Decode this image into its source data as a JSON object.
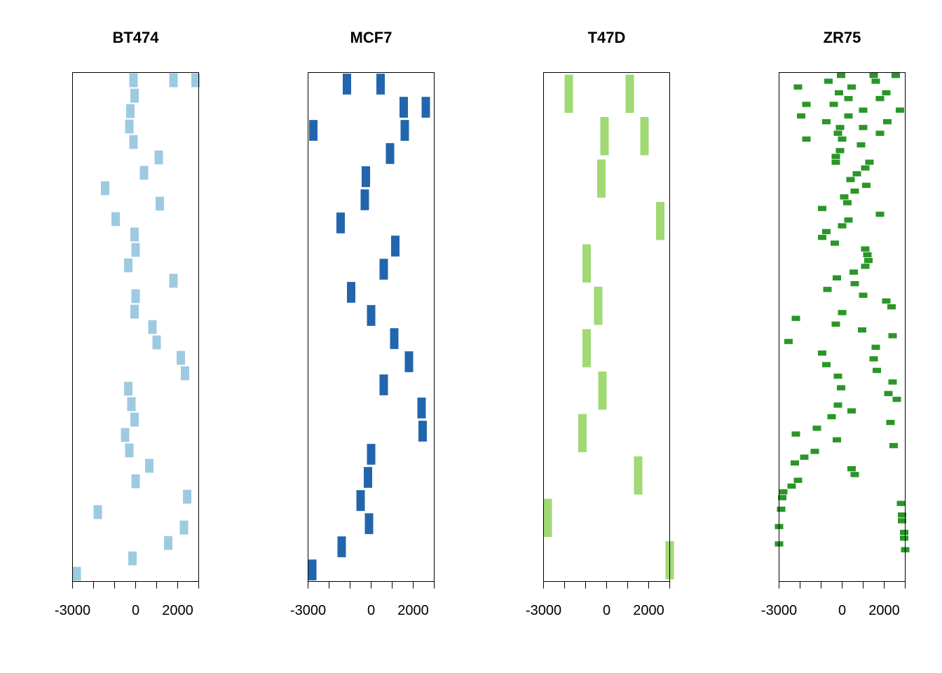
{
  "chart_data": [
    {
      "type": "segment",
      "title": "BT474",
      "color": "#9ECAE1",
      "xlim": [
        -3000,
        3000
      ],
      "x_ticks": [
        -3000,
        -2000,
        -1000,
        0,
        1000,
        2000,
        3000
      ],
      "x_tick_labels": [
        "-3000",
        "",
        "",
        "0",
        "",
        "2000",
        ""
      ],
      "rows": 33,
      "segments": [
        {
          "row": 0,
          "x": -100
        },
        {
          "row": 0,
          "x": 1800
        },
        {
          "row": 0,
          "x": 2850
        },
        {
          "row": 1,
          "x": -50
        },
        {
          "row": 2,
          "x": -250
        },
        {
          "row": 3,
          "x": -300
        },
        {
          "row": 4,
          "x": -100
        },
        {
          "row": 5,
          "x": 1100
        },
        {
          "row": 6,
          "x": 400
        },
        {
          "row": 7,
          "x": -1450
        },
        {
          "row": 8,
          "x": 1150
        },
        {
          "row": 9,
          "x": -950
        },
        {
          "row": 10,
          "x": -50
        },
        {
          "row": 11,
          "x": 0
        },
        {
          "row": 12,
          "x": -350
        },
        {
          "row": 13,
          "x": 1800
        },
        {
          "row": 14,
          "x": 0
        },
        {
          "row": 15,
          "x": -50
        },
        {
          "row": 16,
          "x": 800
        },
        {
          "row": 17,
          "x": 1000
        },
        {
          "row": 18,
          "x": 2150
        },
        {
          "row": 19,
          "x": 2350
        },
        {
          "row": 20,
          "x": -350
        },
        {
          "row": 21,
          "x": -200
        },
        {
          "row": 22,
          "x": -50
        },
        {
          "row": 23,
          "x": -500
        },
        {
          "row": 24,
          "x": -300
        },
        {
          "row": 25,
          "x": 650
        },
        {
          "row": 26,
          "x": 0
        },
        {
          "row": 27,
          "x": 2450
        },
        {
          "row": 28,
          "x": -1800
        },
        {
          "row": 29,
          "x": 2300
        },
        {
          "row": 30,
          "x": 1550
        },
        {
          "row": 31,
          "x": -150
        },
        {
          "row": 32,
          "x": -2800
        }
      ]
    },
    {
      "type": "segment",
      "title": "MCF7",
      "color": "#2166AC",
      "xlim": [
        -3000,
        3000
      ],
      "x_ticks": [
        -3000,
        -2000,
        -1000,
        0,
        1000,
        2000,
        3000
      ],
      "x_tick_labels": [
        "-3000",
        "",
        "",
        "0",
        "",
        "2000",
        ""
      ],
      "rows": 22,
      "segments": [
        {
          "row": 0,
          "x": -1150
        },
        {
          "row": 0,
          "x": 450
        },
        {
          "row": 1,
          "x": 1550
        },
        {
          "row": 1,
          "x": 2600
        },
        {
          "row": 2,
          "x": -2750
        },
        {
          "row": 2,
          "x": 1600
        },
        {
          "row": 3,
          "x": 900
        },
        {
          "row": 4,
          "x": -250
        },
        {
          "row": 5,
          "x": -300
        },
        {
          "row": 6,
          "x": -1450
        },
        {
          "row": 7,
          "x": 1150
        },
        {
          "row": 8,
          "x": 600
        },
        {
          "row": 9,
          "x": -950
        },
        {
          "row": 10,
          "x": 0
        },
        {
          "row": 11,
          "x": 1100
        },
        {
          "row": 12,
          "x": 1800
        },
        {
          "row": 13,
          "x": 600
        },
        {
          "row": 14,
          "x": 2400
        },
        {
          "row": 15,
          "x": 2450
        },
        {
          "row": 16,
          "x": 0
        },
        {
          "row": 17,
          "x": -150
        },
        {
          "row": 18,
          "x": -500
        },
        {
          "row": 19,
          "x": -100
        },
        {
          "row": 20,
          "x": -1400
        },
        {
          "row": 21,
          "x": -2800
        }
      ]
    },
    {
      "type": "segment",
      "title": "T47D",
      "color": "#A1D975",
      "xlim": [
        -3000,
        3000
      ],
      "x_ticks": [
        -3000,
        -2000,
        -1000,
        0,
        1000,
        2000,
        3000
      ],
      "x_tick_labels": [
        "-3000",
        "",
        "",
        "0",
        "",
        "2000",
        ""
      ],
      "rows": 12,
      "segments": [
        {
          "row": 0,
          "x": -1800
        },
        {
          "row": 0,
          "x": 1100
        },
        {
          "row": 1,
          "x": -100
        },
        {
          "row": 1,
          "x": 1800
        },
        {
          "row": 2,
          "x": -250
        },
        {
          "row": 3,
          "x": 2550
        },
        {
          "row": 4,
          "x": -950
        },
        {
          "row": 5,
          "x": -400
        },
        {
          "row": 6,
          "x": -950
        },
        {
          "row": 7,
          "x": -200
        },
        {
          "row": 8,
          "x": -1150
        },
        {
          "row": 9,
          "x": 1500
        },
        {
          "row": 10,
          "x": -2800
        },
        {
          "row": 11,
          "x": 3050
        }
      ]
    },
    {
      "type": "segment",
      "title": "ZR75",
      "color": "#2A9627",
      "xlim": [
        -3000,
        3000
      ],
      "x_ticks": [
        -3000,
        -2000,
        -1000,
        0,
        1000,
        2000,
        3000
      ],
      "x_tick_labels": [
        "-3000",
        "",
        "",
        "0",
        "",
        "2000",
        ""
      ],
      "rows": 88,
      "segments": [
        {
          "row": 0,
          "x": -50
        },
        {
          "row": 0,
          "x": 1500
        },
        {
          "row": 0,
          "x": 2550
        },
        {
          "row": 1,
          "x": -650
        },
        {
          "row": 1,
          "x": 1600
        },
        {
          "row": 2,
          "x": -2100
        },
        {
          "row": 2,
          "x": 450
        },
        {
          "row": 3,
          "x": -150
        },
        {
          "row": 3,
          "x": 2100
        },
        {
          "row": 4,
          "x": 300
        },
        {
          "row": 4,
          "x": 1800
        },
        {
          "row": 5,
          "x": -1700
        },
        {
          "row": 5,
          "x": -400
        },
        {
          "row": 6,
          "x": 1000
        },
        {
          "row": 6,
          "x": 2750
        },
        {
          "row": 7,
          "x": -1950
        },
        {
          "row": 7,
          "x": 300
        },
        {
          "row": 8,
          "x": -750
        },
        {
          "row": 8,
          "x": 2150
        },
        {
          "row": 9,
          "x": -100
        },
        {
          "row": 9,
          "x": 1000
        },
        {
          "row": 10,
          "x": -200
        },
        {
          "row": 10,
          "x": 1800
        },
        {
          "row": 11,
          "x": -1700
        },
        {
          "row": 11,
          "x": 0
        },
        {
          "row": 12,
          "x": 900
        },
        {
          "row": 13,
          "x": -100
        },
        {
          "row": 14,
          "x": -300
        },
        {
          "row": 15,
          "x": -300
        },
        {
          "row": 15,
          "x": 1300
        },
        {
          "row": 16,
          "x": 1100
        },
        {
          "row": 17,
          "x": 700
        },
        {
          "row": 18,
          "x": 400
        },
        {
          "row": 19,
          "x": 1150
        },
        {
          "row": 20,
          "x": 600
        },
        {
          "row": 21,
          "x": 100
        },
        {
          "row": 22,
          "x": 250
        },
        {
          "row": 23,
          "x": -950
        },
        {
          "row": 24,
          "x": 1800
        },
        {
          "row": 25,
          "x": 300
        },
        {
          "row": 26,
          "x": 0
        },
        {
          "row": 27,
          "x": -750
        },
        {
          "row": 28,
          "x": -950
        },
        {
          "row": 29,
          "x": -350
        },
        {
          "row": 30,
          "x": 1100
        },
        {
          "row": 31,
          "x": 1200
        },
        {
          "row": 32,
          "x": 1250
        },
        {
          "row": 33,
          "x": 1100
        },
        {
          "row": 34,
          "x": 550
        },
        {
          "row": 35,
          "x": -250
        },
        {
          "row": 36,
          "x": 600
        },
        {
          "row": 37,
          "x": -700
        },
        {
          "row": 38,
          "x": 1000
        },
        {
          "row": 39,
          "x": 2100
        },
        {
          "row": 40,
          "x": 2350
        },
        {
          "row": 41,
          "x": 0
        },
        {
          "row": 42,
          "x": -2200
        },
        {
          "row": 43,
          "x": -300
        },
        {
          "row": 44,
          "x": 950
        },
        {
          "row": 45,
          "x": 2400
        },
        {
          "row": 46,
          "x": -2550
        },
        {
          "row": 47,
          "x": 1600
        },
        {
          "row": 48,
          "x": -950
        },
        {
          "row": 49,
          "x": 1500
        },
        {
          "row": 50,
          "x": -750
        },
        {
          "row": 51,
          "x": 1650
        },
        {
          "row": 52,
          "x": -200
        },
        {
          "row": 53,
          "x": 2400
        },
        {
          "row": 54,
          "x": -50
        },
        {
          "row": 55,
          "x": 2200
        },
        {
          "row": 56,
          "x": 2600
        },
        {
          "row": 57,
          "x": -200
        },
        {
          "row": 58,
          "x": 450
        },
        {
          "row": 59,
          "x": -500
        },
        {
          "row": 60,
          "x": 2300
        },
        {
          "row": 61,
          "x": -1200
        },
        {
          "row": 62,
          "x": -2200
        },
        {
          "row": 63,
          "x": -250
        },
        {
          "row": 64,
          "x": 2450
        },
        {
          "row": 65,
          "x": -1300
        },
        {
          "row": 66,
          "x": -1800
        },
        {
          "row": 67,
          "x": -2250
        },
        {
          "row": 68,
          "x": 450
        },
        {
          "row": 69,
          "x": 600
        },
        {
          "row": 70,
          "x": -2100
        },
        {
          "row": 71,
          "x": -2400
        },
        {
          "row": 72,
          "x": -2800
        },
        {
          "row": 73,
          "x": -2850
        },
        {
          "row": 74,
          "x": 2800
        },
        {
          "row": 75,
          "x": -2900
        },
        {
          "row": 76,
          "x": 2850
        },
        {
          "row": 77,
          "x": 2850
        },
        {
          "row": 78,
          "x": -3000
        },
        {
          "row": 79,
          "x": 2950
        },
        {
          "row": 80,
          "x": 2950
        },
        {
          "row": 81,
          "x": -3000
        },
        {
          "row": 82,
          "x": 3000
        }
      ]
    }
  ]
}
